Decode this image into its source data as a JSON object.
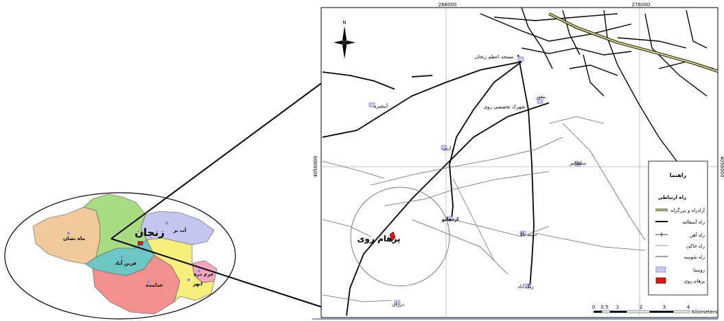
{
  "provinces": [
    {
      "name": "ماه نشان",
      "color": "#f2c99a"
    },
    {
      "name": "زنجان",
      "color": "#a8dc82"
    },
    {
      "name": "آب بر",
      "color": "#c3c6ef"
    },
    {
      "name": "قرین آباد",
      "color": "#6cc6c4"
    },
    {
      "name": "خدابنده",
      "color": "#f28f8f"
    },
    {
      "name": "خرم دره",
      "color": "#f5a6c0"
    },
    {
      "name": "ابهر",
      "color": "#f7ef7c"
    }
  ],
  "province_title": "زنجان",
  "grid_labels": {
    "x1": "268000",
    "x2": "276000",
    "y_left": "4056000",
    "y_right": "4056000"
  },
  "north_label": "N",
  "place_labels": {
    "grand_mosque": "مسجد اعظم زنجان",
    "special_town": "شهرک تخصصی روی",
    "bebagh": "بیغور",
    "anzabilah": "آبنجیره",
    "rajin": "رازین",
    "soltani": "سلطانیر",
    "ezhdahatoo": "اژدهاتو",
    "darband_bala": "دربند بالا",
    "zangabad": "زنگ آباد",
    "dorzan": "درزان",
    "study_site": "پرهام روی"
  },
  "legend": {
    "title": "راهنما",
    "section": "راه ارتباطی",
    "items": [
      {
        "label": "آزادراه و بزرگراه",
        "symbol": "highway"
      },
      {
        "label": "راه آسفالته",
        "symbol": "asphalt"
      },
      {
        "label": "راه آهن",
        "symbol": "rail"
      },
      {
        "label": "راه خاکی",
        "symbol": "dirt"
      },
      {
        "label": "راه شوسه",
        "symbol": "gravel"
      },
      {
        "label": "روستا",
        "symbol": "village",
        "color": "#c7c9ef"
      },
      {
        "label": "پرهام روی",
        "symbol": "site",
        "color": "#e81414"
      }
    ]
  },
  "scale_bar": {
    "ticks": [
      "0",
      "0.5",
      "1",
      "2",
      "3",
      "4"
    ],
    "unit": "Kilometers"
  }
}
